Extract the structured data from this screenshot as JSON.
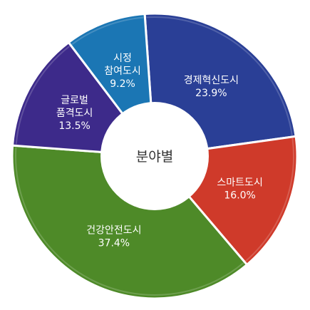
{
  "chart_data": {
    "type": "pie",
    "center_label": "분야별",
    "slices": [
      {
        "name": "경제혁신도시",
        "value": 23.9,
        "value_label": "23.9%",
        "color": "#2a3f96",
        "lines": [
          "경제혁신도시"
        ]
      },
      {
        "name": "스마트도시",
        "value": 16.0,
        "value_label": "16.0%",
        "color": "#cf3a2a",
        "lines": [
          "스마트도시"
        ]
      },
      {
        "name": "건강안전도시",
        "value": 37.4,
        "value_label": "37.4%",
        "color": "#4e8a28",
        "lines": [
          "건강안전도시"
        ]
      },
      {
        "name": "글로벌 품격도시",
        "value": 13.5,
        "value_label": "13.5%",
        "color": "#3d2a8a",
        "lines": [
          "글로벌",
          "품격도시"
        ]
      },
      {
        "name": "시정 참여도시",
        "value": 9.2,
        "value_label": "9.2%",
        "color": "#1b76b4",
        "lines": [
          "시정",
          "참여도시"
        ]
      }
    ]
  }
}
